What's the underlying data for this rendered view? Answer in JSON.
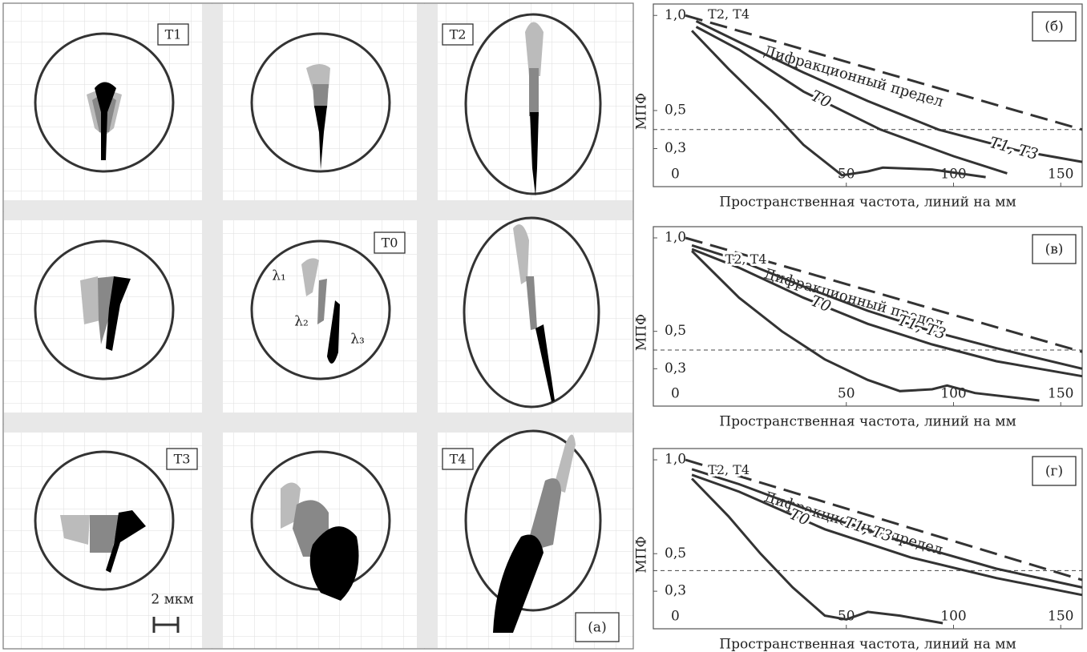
{
  "spot_diagrams": {
    "field_labels": [
      "T1",
      "T2",
      "T0",
      "T3",
      "T4"
    ],
    "wavelength_labels": [
      "λ₁",
      "λ₂",
      "λ₃"
    ],
    "scale_bar": "2 мкм",
    "panel_label": "(а)"
  },
  "chart_data": [
    {
      "type": "line",
      "panel_label": "(б)",
      "x_label": "Пространственная частота, линий на мм",
      "y_label": "МПФ",
      "origin_label": "0",
      "xlim": [
        -40,
        160
      ],
      "ylim": [
        0.1,
        1.06
      ],
      "xticks": [
        50,
        100,
        150
      ],
      "yticks": [
        {
          "value": 1.0,
          "label": "1,0"
        },
        {
          "value": 0.5,
          "label": "0,5"
        },
        {
          "value": 0.3,
          "label": "0,3"
        }
      ],
      "reference_line": 0.4,
      "series": [
        {
          "name": "Дифракционный предел",
          "color": "#333",
          "line_style": "dashed",
          "x": [
            -25,
            160
          ],
          "values": [
            1.0,
            0.4
          ]
        },
        {
          "name": "T0",
          "color": "#333",
          "line_style": "solid",
          "x": [
            -20,
            0,
            30,
            66,
            100,
            125
          ],
          "values": [
            0.94,
            0.82,
            0.6,
            0.4,
            0.26,
            0.17
          ]
        },
        {
          "name": "T1, T3",
          "color": "#333",
          "line_style": "solid",
          "x": [
            -20,
            0,
            30,
            60,
            93,
            130,
            160
          ],
          "values": [
            0.97,
            0.86,
            0.7,
            0.55,
            0.4,
            0.29,
            0.23
          ]
        },
        {
          "name": "T2, T4",
          "color": "#333",
          "line_style": "solid",
          "x": [
            -22,
            -5,
            15,
            30,
            48,
            60,
            67,
            90,
            115
          ],
          "values": [
            0.92,
            0.72,
            0.5,
            0.32,
            0.16,
            0.18,
            0.2,
            0.19,
            0.15
          ]
        }
      ]
    },
    {
      "type": "line",
      "panel_label": "(в)",
      "x_label": "Пространственная частота, линий на мм",
      "y_label": "МПФ",
      "origin_label": "0",
      "xlim": [
        -40,
        160
      ],
      "ylim": [
        0.1,
        1.06
      ],
      "xticks": [
        50,
        100,
        150
      ],
      "yticks": [
        {
          "value": 1.0,
          "label": "1,0"
        },
        {
          "value": 0.5,
          "label": "0,5"
        },
        {
          "value": 0.3,
          "label": "0,3"
        }
      ],
      "reference_line": 0.4,
      "series": [
        {
          "name": "Дифракционный предел",
          "color": "#333",
          "line_style": "dashed",
          "x": [
            -25,
            160
          ],
          "values": [
            1.0,
            0.39
          ]
        },
        {
          "name": "T0",
          "color": "#333",
          "line_style": "solid",
          "x": [
            -22,
            0,
            30,
            60,
            90,
            120,
            160
          ],
          "values": [
            0.94,
            0.84,
            0.68,
            0.54,
            0.43,
            0.34,
            0.26
          ]
        },
        {
          "name": "T1, T3",
          "color": "#333",
          "line_style": "solid",
          "x": [
            -22,
            0,
            30,
            60,
            90,
            120,
            160
          ],
          "values": [
            0.96,
            0.88,
            0.74,
            0.61,
            0.5,
            0.41,
            0.3
          ]
        },
        {
          "name": "T2, T4",
          "color": "#333",
          "line_style": "solid",
          "x": [
            -22,
            0,
            20,
            40,
            60,
            75,
            90,
            97,
            110,
            140
          ],
          "values": [
            0.93,
            0.68,
            0.5,
            0.35,
            0.24,
            0.18,
            0.19,
            0.21,
            0.17,
            0.13
          ]
        }
      ]
    },
    {
      "type": "line",
      "panel_label": "(г)",
      "x_label": "Пространственная частота, линий на мм",
      "y_label": "МПФ",
      "origin_label": "0",
      "xlim": [
        -40,
        160
      ],
      "ylim": [
        0.1,
        1.06
      ],
      "xticks": [
        50,
        100,
        150
      ],
      "yticks": [
        {
          "value": 1.0,
          "label": "1,0"
        },
        {
          "value": 0.5,
          "label": "0,5"
        },
        {
          "value": 0.3,
          "label": "0,3"
        }
      ],
      "reference_line": 0.41,
      "series": [
        {
          "name": "Дифракционный предел",
          "color": "#333",
          "line_style": "dashed",
          "x": [
            -25,
            160
          ],
          "values": [
            1.0,
            0.36
          ]
        },
        {
          "name": "T0",
          "color": "#333",
          "line_style": "solid",
          "x": [
            -22,
            0,
            40,
            80,
            120,
            160
          ],
          "values": [
            0.92,
            0.83,
            0.63,
            0.48,
            0.37,
            0.28
          ]
        },
        {
          "name": "T1, T3",
          "color": "#333",
          "line_style": "solid",
          "x": [
            -22,
            0,
            40,
            80,
            120,
            160
          ],
          "values": [
            0.95,
            0.87,
            0.7,
            0.55,
            0.42,
            0.32
          ]
        },
        {
          "name": "T2, T4",
          "color": "#333",
          "line_style": "solid",
          "x": [
            -22,
            -5,
            10,
            25,
            40,
            50,
            60,
            75,
            95
          ],
          "values": [
            0.9,
            0.7,
            0.5,
            0.32,
            0.17,
            0.15,
            0.19,
            0.17,
            0.13
          ]
        }
      ]
    }
  ]
}
